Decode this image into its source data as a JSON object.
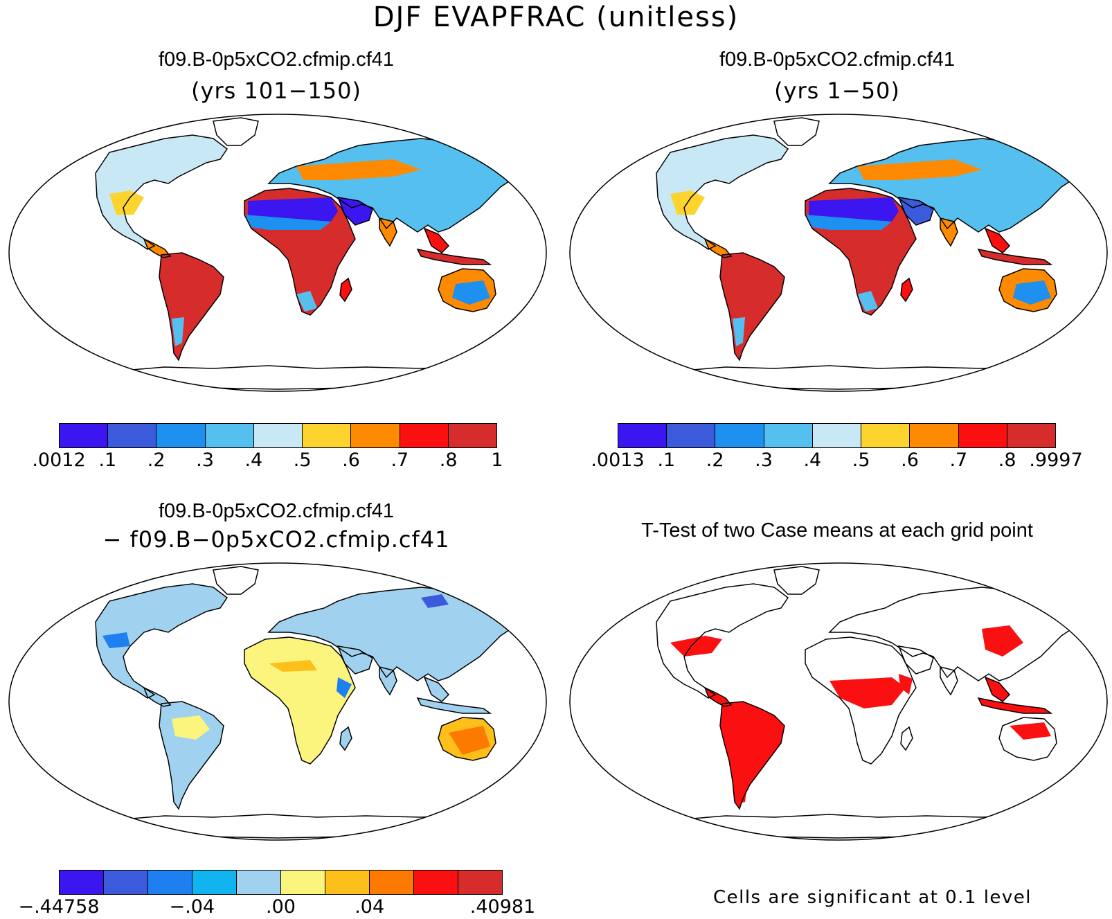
{
  "title": "DJF EVAPFRAC (unitless)",
  "panels": {
    "top_left": {
      "title": "f09.B-0p5xCO2.cfmip.cf41",
      "subtitle": "(yrs 101−150)"
    },
    "top_right": {
      "title": "f09.B-0p5xCO2.cfmip.cf41",
      "subtitle": "(yrs 1−50)"
    },
    "bottom_left": {
      "title": "f09.B-0p5xCO2.cfmip.cf41",
      "subtitle": "− f09.B−0p5xCO2.cfmip.cf41"
    },
    "bottom_right": {
      "title": "T-Test of two Case means at each grid point",
      "note": "Cells are significant at 0.1 level"
    }
  },
  "colorbars": {
    "top_left": {
      "colors": [
        "#3b16f0",
        "#3b5bdc",
        "#1e90f0",
        "#55bff0",
        "#c8e8f6",
        "#fdd42e",
        "#fd8a00",
        "#fa1010",
        "#d62c2c"
      ],
      "labels": [
        ".0012",
        ".1",
        ".2",
        ".3",
        ".4",
        ".5",
        ".6",
        ".7",
        ".8",
        "1"
      ]
    },
    "top_right": {
      "colors": [
        "#3b16f0",
        "#3b5bdc",
        "#1e90f0",
        "#55bff0",
        "#c8e8f6",
        "#fdd42e",
        "#fd8a00",
        "#fa1010",
        "#d62c2c"
      ],
      "labels": [
        ".0013",
        ".1",
        ".2",
        ".3",
        ".4",
        ".5",
        ".6",
        ".7",
        ".8",
        ".9997"
      ]
    },
    "bottom_left": {
      "colors": [
        "#3b16f0",
        "#3b5bdc",
        "#1e7ff0",
        "#12b4f0",
        "#a0d2ef",
        "#fbf57e",
        "#fdbf1a",
        "#fd7a00",
        "#fa1010",
        "#d62c2c"
      ],
      "labels": [
        "−.44758",
        "−.04",
        ".00",
        ".04",
        ".40981"
      ]
    }
  },
  "map_data": {
    "projection": "robinson-like ellipse",
    "variable": "EVAPFRAC",
    "season": "DJF",
    "regions_top_left": [
      {
        "region": "Sahara",
        "color": "#3b16f0"
      },
      {
        "region": "Arabia",
        "color": "#3b16f0"
      },
      {
        "region": "Amazon",
        "color": "#d62c2c"
      },
      {
        "region": "Central Africa",
        "color": "#d62c2c"
      },
      {
        "region": "Eastern USA",
        "color": "#c8e8f6"
      },
      {
        "region": "Central Asia",
        "color": "#55bff0"
      },
      {
        "region": "Australia interior",
        "color": "#1e90f0"
      },
      {
        "region": "Indonesia",
        "color": "#d62c2c"
      }
    ],
    "regions_top_right": [
      {
        "region": "Sahara",
        "color": "#3b16f0"
      },
      {
        "region": "Arabia",
        "color": "#3b5bdc"
      },
      {
        "region": "Amazon",
        "color": "#d62c2c"
      },
      {
        "region": "Central Africa",
        "color": "#d62c2c"
      },
      {
        "region": "Eastern USA",
        "color": "#c8e8f6"
      },
      {
        "region": "Central Asia",
        "color": "#55bff0"
      },
      {
        "region": "Australia interior",
        "color": "#1e90f0"
      },
      {
        "region": "Indonesia",
        "color": "#d62c2c"
      }
    ],
    "regions_bottom_left": [
      {
        "region": "North America",
        "color": "#a0d2ef"
      },
      {
        "region": "South America",
        "color": "#a0d2ef"
      },
      {
        "region": "Sahara",
        "color": "#fbf57e"
      },
      {
        "region": "Southern Africa",
        "color": "#fbf57e"
      },
      {
        "region": "Eurasia",
        "color": "#a0d2ef"
      },
      {
        "region": "Australia",
        "color": "#fdbf1a"
      }
    ],
    "regions_bottom_right_significant": [
      "Amazon",
      "Central Africa",
      "Eastern USA",
      "East Asia",
      "Indonesia",
      "Northern Australia",
      "Horn of Africa"
    ]
  }
}
